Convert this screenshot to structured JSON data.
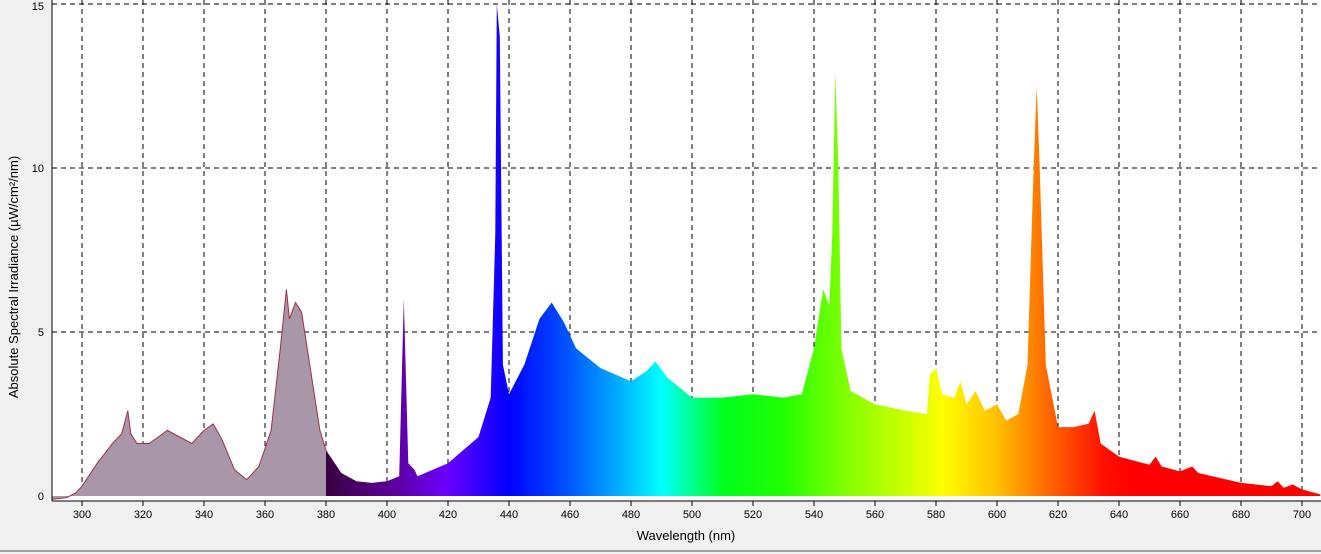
{
  "chart_data": {
    "type": "area",
    "title": "",
    "xlabel": "Wavelength (nm)",
    "ylabel": "Absolute Spectral Irradiance (µW/cm²/nm)",
    "xlim": [
      290,
      706
    ],
    "ylim": [
      0,
      15
    ],
    "x_ticks": [
      "300",
      "320",
      "340",
      "360",
      "380",
      "400",
      "420",
      "440",
      "460",
      "480",
      "500",
      "520",
      "540",
      "560",
      "580",
      "600",
      "620",
      "640",
      "660",
      "680",
      "700"
    ],
    "y_ticks": [
      "0",
      "5",
      "10",
      "15"
    ],
    "grid": true,
    "fill": "spectral colors by wavelength from 380 nm; grey-purple below 380 nm",
    "colors": {
      "uv_fill": "#a897a8",
      "uv_line": "#a03040"
    },
    "series": [
      {
        "x": [
          290,
          295,
          298,
          300,
          305,
          310,
          313,
          315,
          316,
          318,
          322,
          325,
          328,
          332,
          336,
          340,
          343,
          346,
          350,
          354,
          358,
          362,
          365,
          367,
          368,
          370,
          372,
          375,
          378,
          380,
          385,
          390,
          395,
          400,
          404,
          405.5,
          407,
          409,
          410,
          420,
          430,
          434,
          435.5,
          436,
          437,
          438,
          440,
          445,
          450,
          454,
          458,
          462,
          470,
          480,
          485,
          488,
          492,
          500,
          510,
          520,
          530,
          536,
          540,
          543,
          545,
          546,
          547,
          548,
          549,
          552,
          560,
          570,
          577,
          578,
          580,
          582,
          586,
          588,
          590,
          593,
          596,
          600,
          603,
          607,
          610,
          612,
          613,
          614,
          616,
          620,
          625,
          630,
          632,
          634,
          640,
          650,
          652,
          654,
          660,
          664,
          666,
          680,
          690,
          692,
          694,
          697,
          700,
          706
        ],
        "y": [
          -0.1,
          -0.05,
          0.1,
          0.3,
          1.0,
          1.6,
          1.9,
          2.6,
          1.9,
          1.6,
          1.6,
          1.8,
          2.0,
          1.8,
          1.6,
          2.0,
          2.2,
          1.7,
          0.8,
          0.5,
          0.9,
          2.0,
          4.5,
          6.3,
          5.4,
          5.9,
          5.6,
          3.8,
          2.0,
          1.4,
          0.7,
          0.45,
          0.4,
          0.45,
          0.6,
          6.0,
          1.0,
          0.8,
          0.6,
          1.0,
          1.8,
          3.0,
          8,
          15,
          14,
          4,
          3.1,
          4.0,
          5.4,
          5.9,
          5.3,
          4.5,
          3.9,
          3.5,
          3.8,
          4.1,
          3.6,
          3.0,
          3.0,
          3.1,
          3.0,
          3.1,
          4.5,
          6.3,
          5.8,
          8,
          12.9,
          10,
          4.5,
          3.2,
          2.8,
          2.6,
          2.5,
          3.7,
          3.9,
          3.1,
          3.0,
          3.5,
          2.8,
          3.2,
          2.6,
          2.8,
          2.3,
          2.5,
          4,
          10,
          12.5,
          10,
          4,
          2.1,
          2.1,
          2.2,
          2.6,
          1.6,
          1.2,
          0.95,
          1.2,
          0.9,
          0.75,
          0.9,
          0.7,
          0.4,
          0.3,
          0.45,
          0.25,
          0.35,
          0.2,
          0.05
        ]
      }
    ]
  }
}
